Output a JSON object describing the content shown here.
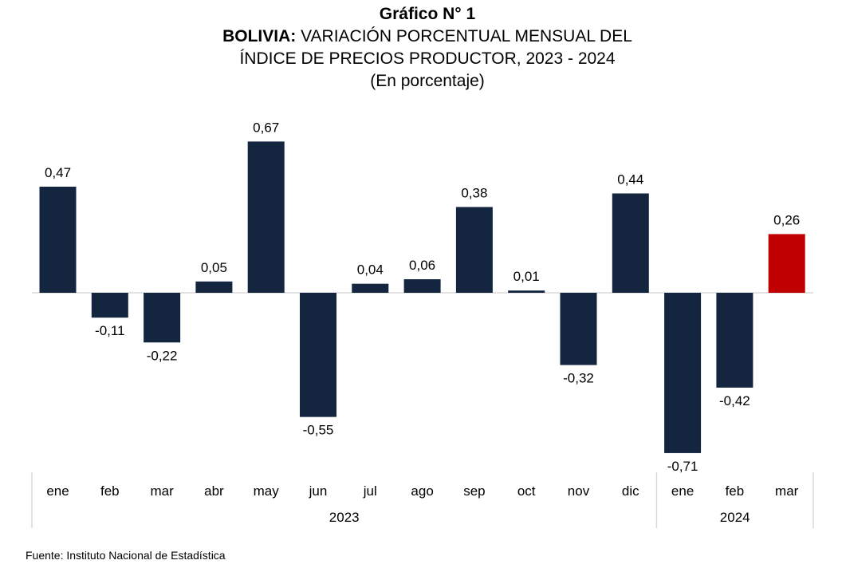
{
  "header": {
    "chart_number": "Gráfico N° 1",
    "title_bold": "BOLIVIA:",
    "title_line1_rest": " VARIACIÓN PORCENTUAL MENSUAL DEL",
    "title_line2": "ÍNDICE DE PRECIOS PRODUCTOR, 2023 - 2024",
    "subtitle": "(En porcentaje)"
  },
  "source": "Fuente: Instituto Nacional de Estadística",
  "colors": {
    "bar": "#13253F",
    "highlight": "#C00000",
    "axis": "#D9D9D9"
  },
  "chart_data": {
    "type": "bar",
    "categories": [
      "ene",
      "feb",
      "mar",
      "abr",
      "may",
      "jun",
      "jul",
      "ago",
      "sep",
      "oct",
      "nov",
      "dic",
      "ene",
      "feb",
      "mar"
    ],
    "groups": [
      {
        "label": "2023",
        "months": 12
      },
      {
        "label": "2024",
        "months": 3
      }
    ],
    "values": [
      0.47,
      -0.11,
      -0.22,
      0.05,
      0.67,
      -0.55,
      0.04,
      0.06,
      0.38,
      0.01,
      -0.32,
      0.44,
      -0.71,
      -0.42,
      0.26
    ],
    "labels": [
      "0,47",
      "-0,11",
      "-0,22",
      "0,05",
      "0,67",
      "-0,55",
      "0,04",
      "0,06",
      "0,38",
      "0,01",
      "-0,32",
      "0,44",
      "-0,71",
      "-0,42",
      "0,26"
    ],
    "highlight_index": 14,
    "title": "BOLIVIA: VARIACIÓN PORCENTUAL MENSUAL DEL ÍNDICE DE PRECIOS PRODUCTOR, 2023 - 2024",
    "xlabel": "",
    "ylabel": "",
    "ylim": [
      -0.8,
      0.8
    ],
    "grid": false,
    "legend": "none"
  }
}
